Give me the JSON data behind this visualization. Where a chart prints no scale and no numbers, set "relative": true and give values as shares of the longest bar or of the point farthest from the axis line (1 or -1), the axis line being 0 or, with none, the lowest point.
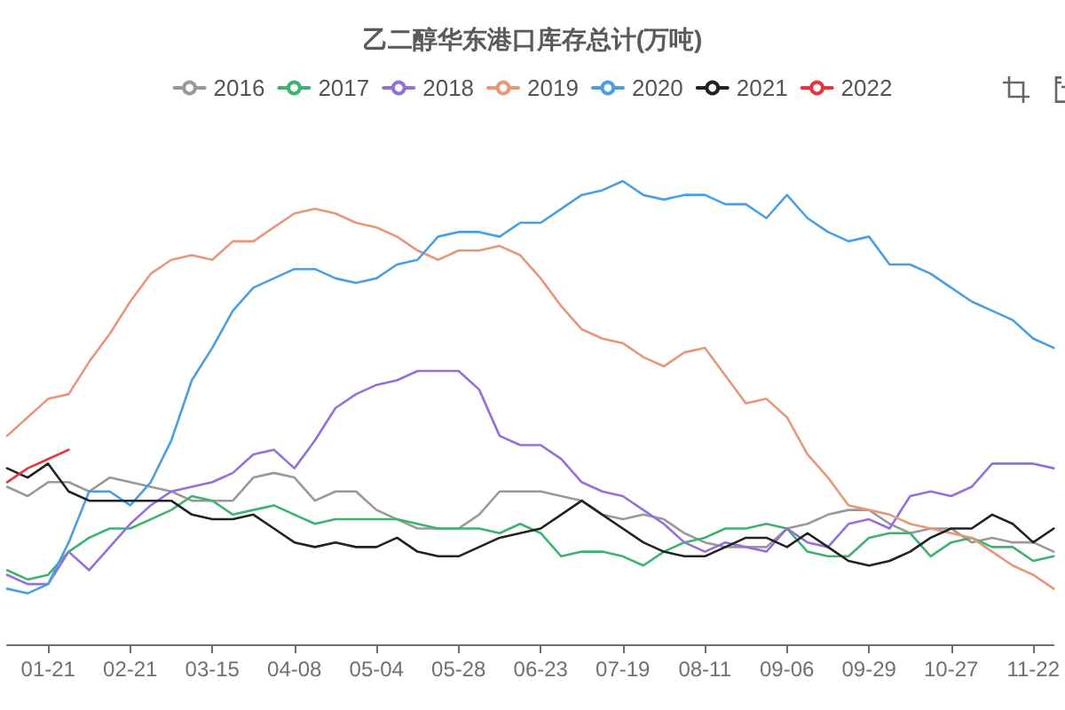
{
  "chart_data": {
    "type": "line",
    "title": "乙二醇华东港口库存总计(万吨)",
    "relative": true,
    "legend": "top",
    "marker": "none",
    "categories": [
      null,
      null,
      "01-21",
      null,
      null,
      null,
      "02-21",
      null,
      null,
      null,
      "03-15",
      null,
      null,
      null,
      "04-08",
      null,
      null,
      null,
      "05-04",
      null,
      null,
      null,
      "05-28",
      null,
      null,
      null,
      "06-23",
      null,
      null,
      null,
      "07-19",
      null,
      null,
      null,
      "08-11",
      null,
      null,
      null,
      "09-06",
      null,
      null,
      null,
      "09-29",
      null,
      null,
      null,
      "10-27",
      null,
      null,
      null,
      "11-22",
      null
    ],
    "series": [
      {
        "name": "2016",
        "color": "#999999",
        "values": [
          0.34,
          0.32,
          0.35,
          0.35,
          0.33,
          0.36,
          0.35,
          0.34,
          0.33,
          0.31,
          0.31,
          0.31,
          0.36,
          0.37,
          0.36,
          0.31,
          0.33,
          0.33,
          0.29,
          0.27,
          0.25,
          0.25,
          0.25,
          0.28,
          0.33,
          0.33,
          0.33,
          0.32,
          0.31,
          0.28,
          0.27,
          0.28,
          0.27,
          0.24,
          0.22,
          0.21,
          0.21,
          0.21,
          0.25,
          0.26,
          0.28,
          0.29,
          0.29,
          0.26,
          0.24,
          0.25,
          0.25,
          0.22,
          0.23,
          0.22,
          0.22,
          0.2
        ]
      },
      {
        "name": "2017",
        "color": "#3cb371",
        "values": [
          0.16,
          0.14,
          0.15,
          0.2,
          0.23,
          0.25,
          0.25,
          0.27,
          0.29,
          0.32,
          0.31,
          0.28,
          0.29,
          0.3,
          0.28,
          0.26,
          0.27,
          0.27,
          0.27,
          0.27,
          0.26,
          0.25,
          0.25,
          0.25,
          0.24,
          0.26,
          0.24,
          0.19,
          0.2,
          0.2,
          0.19,
          0.17,
          0.2,
          0.22,
          0.23,
          0.25,
          0.25,
          0.26,
          0.25,
          0.2,
          0.19,
          0.19,
          0.23,
          0.24,
          0.24,
          0.19,
          0.22,
          0.23,
          0.21,
          0.21,
          0.18,
          0.19
        ]
      },
      {
        "name": "2018",
        "color": "#9370db",
        "values": [
          0.15,
          0.13,
          0.13,
          0.2,
          0.16,
          0.21,
          0.26,
          0.3,
          0.33,
          0.34,
          0.35,
          0.37,
          0.41,
          0.42,
          0.38,
          0.44,
          0.51,
          0.54,
          0.56,
          0.57,
          0.59,
          0.59,
          0.59,
          0.55,
          0.45,
          0.43,
          0.43,
          0.4,
          0.35,
          0.33,
          0.32,
          0.29,
          0.26,
          0.22,
          0.2,
          0.22,
          0.21,
          0.2,
          0.25,
          0.22,
          0.21,
          0.26,
          0.27,
          0.25,
          0.32,
          0.33,
          0.32,
          0.34,
          0.39,
          0.39,
          0.39,
          0.38
        ]
      },
      {
        "name": "2019",
        "color": "#e9967a",
        "values": [
          0.45,
          0.49,
          0.53,
          0.54,
          0.61,
          0.67,
          0.74,
          0.8,
          0.83,
          0.84,
          0.83,
          0.87,
          0.87,
          0.9,
          0.93,
          0.94,
          0.93,
          0.91,
          0.9,
          0.88,
          0.85,
          0.83,
          0.85,
          0.85,
          0.86,
          0.84,
          0.79,
          0.73,
          0.68,
          0.66,
          0.65,
          0.62,
          0.6,
          0.63,
          0.64,
          0.58,
          0.52,
          0.53,
          0.49,
          0.41,
          0.36,
          0.3,
          0.29,
          0.28,
          0.26,
          0.25,
          0.24,
          0.23,
          0.2,
          0.17,
          0.15,
          0.12
        ]
      },
      {
        "name": "2020",
        "color": "#4a9fe3",
        "values": [
          0.12,
          0.11,
          0.13,
          0.22,
          0.33,
          0.33,
          0.3,
          0.35,
          0.44,
          0.57,
          0.64,
          0.72,
          0.77,
          0.79,
          0.81,
          0.81,
          0.79,
          0.78,
          0.79,
          0.82,
          0.83,
          0.88,
          0.89,
          0.89,
          0.88,
          0.91,
          0.91,
          0.94,
          0.97,
          0.98,
          1,
          0.97,
          0.96,
          0.97,
          0.97,
          0.95,
          0.95,
          0.92,
          0.97,
          0.92,
          0.89,
          0.87,
          0.88,
          0.82,
          0.82,
          0.8,
          0.77,
          0.74,
          0.72,
          0.7,
          0.66,
          0.64
        ]
      },
      {
        "name": "2021",
        "color": "#222222",
        "values": [
          0.38,
          0.36,
          0.39,
          0.33,
          0.31,
          0.31,
          0.31,
          0.31,
          0.31,
          0.28,
          0.27,
          0.27,
          0.28,
          0.25,
          0.22,
          0.21,
          0.22,
          0.21,
          0.21,
          0.23,
          0.2,
          0.19,
          0.19,
          0.21,
          0.23,
          0.24,
          0.25,
          0.28,
          0.31,
          0.28,
          0.25,
          0.22,
          0.2,
          0.19,
          0.19,
          0.21,
          0.23,
          0.23,
          0.21,
          0.24,
          0.21,
          0.18,
          0.17,
          0.18,
          0.2,
          0.23,
          0.25,
          0.25,
          0.28,
          0.26,
          0.22,
          0.25
        ]
      },
      {
        "name": "2022",
        "color": "#e8353b",
        "values": [
          0.35,
          0.38,
          0.4,
          0.42,
          null,
          null,
          null,
          null,
          null,
          null,
          null,
          null,
          null,
          null,
          null,
          null,
          null,
          null,
          null,
          null,
          null,
          null,
          null,
          null,
          null,
          null,
          null,
          null,
          null,
          null,
          null,
          null,
          null,
          null,
          null,
          null,
          null,
          null,
          null,
          null,
          null,
          null,
          null,
          null,
          null,
          null,
          null,
          null,
          null,
          null,
          null,
          null
        ]
      }
    ]
  }
}
